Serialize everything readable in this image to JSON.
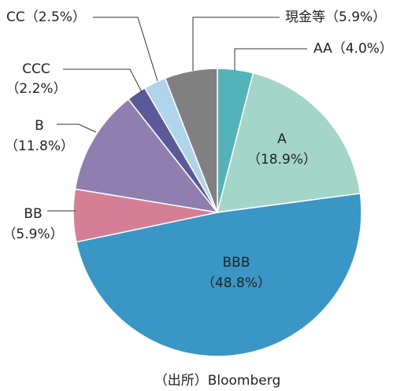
{
  "chart_data": {
    "type": "pie",
    "categories": [
      "AA",
      "A",
      "BBB",
      "BB",
      "B",
      "CCC",
      "CC",
      "現金等"
    ],
    "values": [
      4.0,
      18.9,
      48.8,
      5.9,
      11.8,
      2.2,
      2.5,
      5.9
    ],
    "value_labels": [
      "（4.0%）",
      "（18.9%）",
      "（48.8%）",
      "（5.9%）",
      "（11.8%）",
      "（2.2%）",
      "（2.5%）",
      "（5.9%）"
    ],
    "colors": [
      "#52b3b8",
      "#a3d6c8",
      "#3a96c4",
      "#d47f95",
      "#8e7fb0",
      "#5a5a9a",
      "#b0d4ea",
      "#808080"
    ],
    "source": "（出所）Bloomberg"
  }
}
